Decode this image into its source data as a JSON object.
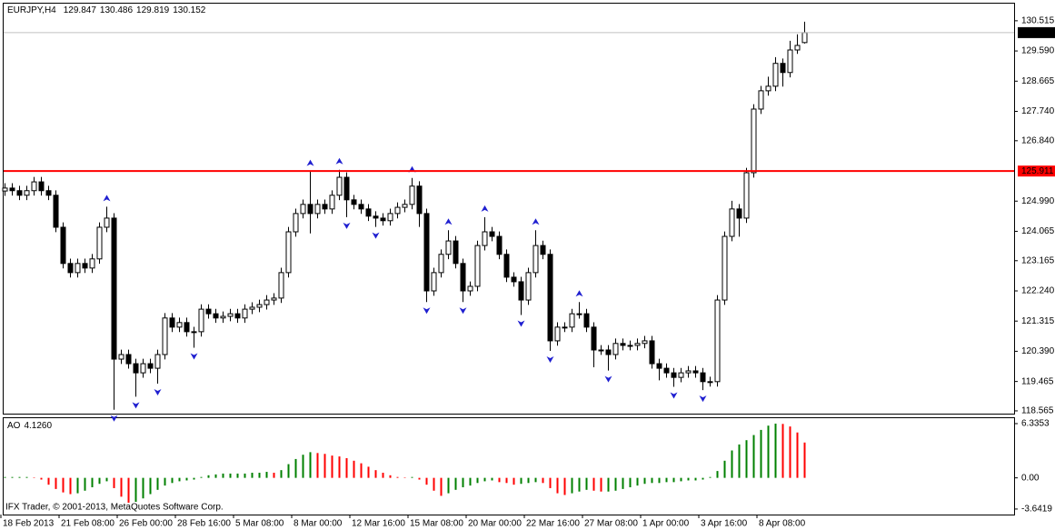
{
  "chart_data": [
    {
      "type": "candlestick",
      "title": "EURJPY,H4",
      "categories": [
        "18 Feb 2013",
        null,
        null,
        null,
        null,
        null,
        null,
        null,
        "21 Feb 08:00",
        null,
        null,
        null,
        null,
        null,
        null,
        null,
        "26 Feb 00:00",
        null,
        null,
        null,
        null,
        null,
        null,
        null,
        "28 Feb 16:00",
        null,
        null,
        null,
        null,
        null,
        null,
        null,
        "5 Mar 08:00",
        null,
        null,
        null,
        null,
        null,
        null,
        null,
        "8 Mar 00:00",
        null,
        null,
        null,
        null,
        null,
        null,
        null,
        "12 Mar 16:00",
        null,
        null,
        null,
        null,
        null,
        null,
        null,
        "15 Mar 08:00",
        null,
        null,
        null,
        null,
        null,
        null,
        null,
        "20 Mar 00:00",
        null,
        null,
        null,
        null,
        null,
        null,
        null,
        "22 Mar 16:00",
        null,
        null,
        null,
        null,
        null,
        null,
        null,
        "27 Mar 08:00",
        null,
        null,
        null,
        null,
        null,
        null,
        null,
        "1 Apr 00:00",
        null,
        null,
        null,
        null,
        null,
        null,
        null,
        "3 Apr 16:00",
        null,
        null,
        null,
        null,
        null,
        null,
        null,
        "8 Apr 08:00",
        null,
        null,
        null,
        null,
        null,
        null
      ],
      "open": [
        125.3,
        125.39,
        125.31,
        125.17,
        125.31,
        125.58,
        125.31,
        125.17,
        124.19,
        123.08,
        122.8,
        123.08,
        122.94,
        123.22,
        124.19,
        124.47,
        120.15,
        120.29,
        120.01,
        119.73,
        120.01,
        119.87,
        120.29,
        121.41,
        121.13,
        121.27,
        120.99,
        120.99,
        121.68,
        121.54,
        121.41,
        121.46,
        121.54,
        121.41,
        121.68,
        121.74,
        121.82,
        121.96,
        122.02,
        122.8,
        124.05,
        124.61,
        124.89,
        124.61,
        124.89,
        124.75,
        125.17,
        125.72,
        125.03,
        124.89,
        124.75,
        124.53,
        124.47,
        124.39,
        124.61,
        124.8,
        124.89,
        125.45,
        124.61,
        122.24,
        122.8,
        123.36,
        123.77,
        123.08,
        122.24,
        122.38,
        123.63,
        124.05,
        123.91,
        123.36,
        122.66,
        122.52,
        121.96,
        122.8,
        123.63,
        123.36,
        120.71,
        121.13,
        121.13,
        121.54,
        121.54,
        121.13,
        120.43,
        120.43,
        120.29,
        120.63,
        120.57,
        120.57,
        120.63,
        120.71,
        120.01,
        119.87,
        119.73,
        119.59,
        119.73,
        119.79,
        119.73,
        119.46,
        119.46,
        121.96,
        123.91,
        124.75,
        124.47,
        125.86,
        127.81,
        128.37,
        128.51,
        129.21,
        128.93,
        129.62,
        129.847
      ],
      "high": [
        125.54,
        125.54,
        125.46,
        125.46,
        125.73,
        125.73,
        125.46,
        125.32,
        124.34,
        123.23,
        123.23,
        123.23,
        123.37,
        124.34,
        124.82,
        124.62,
        120.44,
        120.44,
        120.16,
        120.16,
        120.16,
        120.44,
        121.56,
        121.56,
        121.42,
        121.42,
        121.14,
        121.83,
        121.83,
        121.69,
        121.61,
        121.69,
        121.69,
        121.83,
        121.89,
        121.97,
        122.11,
        122.17,
        122.95,
        124.2,
        124.76,
        125.04,
        125.9,
        125.04,
        125.04,
        125.32,
        125.95,
        125.87,
        125.18,
        125.04,
        124.9,
        124.68,
        124.62,
        124.76,
        124.95,
        125.04,
        125.7,
        125.6,
        124.76,
        122.95,
        123.51,
        124.1,
        123.92,
        123.23,
        122.53,
        123.78,
        124.5,
        124.2,
        124.06,
        123.51,
        122.81,
        122.67,
        122.95,
        124.1,
        123.78,
        123.51,
        121.28,
        121.28,
        121.69,
        121.9,
        121.69,
        121.28,
        120.58,
        120.58,
        120.78,
        120.78,
        120.72,
        120.78,
        120.86,
        120.86,
        120.16,
        120.02,
        119.88,
        119.88,
        119.94,
        119.94,
        119.88,
        119.61,
        122.11,
        124.06,
        125.0,
        124.9,
        126.01,
        127.96,
        128.52,
        128.8,
        129.4,
        129.36,
        129.9,
        130.1,
        130.486
      ],
      "low": [
        125.15,
        125.16,
        125.02,
        125.02,
        125.16,
        125.16,
        125.02,
        124.04,
        122.93,
        122.65,
        122.65,
        122.79,
        122.79,
        123.07,
        124.04,
        118.6,
        120.0,
        119.86,
        119.0,
        119.58,
        119.72,
        119.4,
        120.14,
        120.98,
        120.98,
        120.84,
        120.5,
        120.84,
        121.39,
        121.26,
        121.26,
        121.31,
        121.26,
        121.26,
        121.53,
        121.59,
        121.67,
        121.81,
        121.87,
        122.65,
        123.9,
        124.46,
        124.0,
        124.46,
        124.6,
        124.6,
        125.02,
        124.5,
        124.74,
        124.6,
        124.38,
        124.2,
        124.24,
        124.24,
        124.46,
        124.65,
        124.74,
        124.2,
        121.9,
        122.09,
        122.65,
        123.21,
        122.93,
        121.9,
        122.09,
        122.23,
        123.48,
        123.76,
        123.21,
        122.51,
        122.37,
        121.5,
        121.81,
        122.65,
        123.21,
        120.4,
        120.56,
        120.98,
        120.98,
        121.39,
        120.98,
        119.9,
        120.28,
        119.8,
        120.14,
        120.42,
        120.42,
        120.42,
        120.48,
        119.86,
        119.5,
        119.58,
        119.3,
        119.44,
        119.58,
        119.58,
        119.2,
        119.31,
        119.31,
        121.81,
        123.76,
        123.9,
        124.32,
        125.71,
        127.66,
        128.22,
        128.36,
        128.5,
        128.78,
        129.5,
        129.819
      ],
      "close": [
        125.39,
        125.31,
        125.17,
        125.31,
        125.58,
        125.31,
        125.17,
        124.19,
        123.08,
        122.8,
        123.08,
        122.94,
        123.22,
        124.19,
        124.47,
        120.15,
        120.29,
        120.01,
        119.73,
        120.01,
        119.87,
        120.29,
        121.41,
        121.13,
        121.27,
        120.99,
        120.99,
        121.68,
        121.54,
        121.41,
        121.46,
        121.54,
        121.41,
        121.68,
        121.74,
        121.82,
        121.96,
        122.02,
        122.8,
        124.05,
        124.61,
        124.89,
        124.61,
        124.89,
        124.75,
        125.17,
        125.72,
        125.03,
        124.89,
        124.75,
        124.53,
        124.47,
        124.39,
        124.61,
        124.8,
        124.89,
        125.45,
        124.61,
        122.24,
        122.8,
        123.36,
        123.77,
        123.08,
        122.24,
        122.38,
        123.63,
        124.05,
        123.91,
        123.36,
        122.66,
        122.52,
        121.96,
        122.8,
        123.63,
        123.36,
        120.71,
        121.13,
        121.13,
        121.54,
        121.54,
        121.13,
        120.43,
        120.43,
        120.29,
        120.63,
        120.57,
        120.57,
        120.63,
        120.71,
        120.01,
        119.87,
        119.73,
        119.59,
        119.73,
        119.79,
        119.73,
        119.46,
        119.46,
        121.96,
        123.91,
        124.75,
        124.47,
        125.86,
        127.81,
        128.37,
        128.51,
        129.21,
        128.93,
        129.62,
        129.76,
        130.152
      ],
      "ylim": [
        118.48,
        131.04
      ],
      "yticks": [
        130.515,
        {
          "value": 129.59,
          "label": "129.590"
        },
        128.665,
        {
          "value": 127.74,
          "label": "127.740"
        },
        {
          "value": 126.84,
          "label": "126.840"
        },
        {
          "value": 124.99,
          "label": "124.990"
        },
        124.065,
        123.165,
        {
          "value": 122.24,
          "label": "122.240"
        },
        121.315,
        {
          "value": 120.39,
          "label": "120.390"
        },
        119.465,
        118.565
      ],
      "hline": {
        "value": 125.911,
        "color": "#ff0000"
      },
      "up_color": "#ffffff",
      "down_color": "#000000",
      "fractal_color": "#1f1fd0"
    },
    {
      "type": "histogram",
      "title": "AO",
      "values": [
        0.1,
        0.1,
        0.1,
        0.1,
        0.05,
        -0.2,
        -0.8,
        -1.3,
        -1.7,
        -1.9,
        -1.8,
        -1.5,
        -1.1,
        -0.7,
        -0.4,
        -1.2,
        -2.2,
        -2.9,
        -2.8,
        -2.4,
        -1.9,
        -1.4,
        -0.9,
        -0.6,
        -0.4,
        -0.3,
        -0.2,
        0.1,
        0.3,
        0.4,
        0.5,
        0.5,
        0.5,
        0.5,
        0.6,
        0.6,
        0.7,
        0.6,
        0.9,
        1.6,
        2.2,
        2.7,
        3.0,
        2.9,
        2.8,
        2.6,
        2.5,
        2.3,
        2.0,
        1.7,
        1.3,
        0.9,
        0.6,
        0.3,
        0.1,
        0.05,
        0.1,
        -0.2,
        -0.8,
        -1.5,
        -2.1,
        -1.8,
        -1.4,
        -1.1,
        -0.9,
        -0.6,
        -0.4,
        -0.3,
        -0.5,
        -0.6,
        -0.8,
        -0.7,
        -0.6,
        -0.5,
        -0.6,
        -1.2,
        -1.8,
        -2.0,
        -1.8,
        -1.6,
        -1.4,
        -1.5,
        -1.6,
        -1.6,
        -1.5,
        -1.3,
        -1.1,
        -0.9,
        -0.7,
        -0.6,
        -0.6,
        -0.5,
        -0.5,
        -0.4,
        -0.3,
        -0.3,
        -0.2,
        0.1,
        0.8,
        2.0,
        3.2,
        3.9,
        4.4,
        5.0,
        5.6,
        6.1,
        6.3353,
        6.3,
        6.0,
        5.3,
        4.126
      ],
      "current": {
        "value": 4.126,
        "label": "4.1260"
      },
      "ylim": [
        -4.18,
        6.97
      ],
      "yticks": [
        6.3353,
        {
          "value": 0,
          "label": "0.00"
        },
        -3.6419
      ],
      "up_color": "#008000",
      "down_color": "#ff0000"
    }
  ],
  "footer": "IFX Trader, © 2001-2013, MetaQuotes Software Corp."
}
